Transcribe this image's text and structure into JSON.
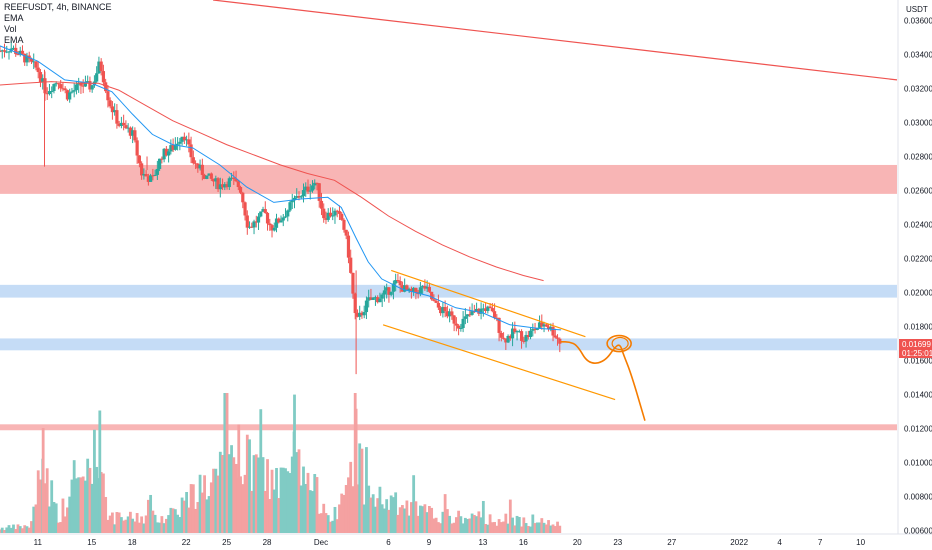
{
  "legend": {
    "symbol": "REEFUSDT, 4h, BINANCE",
    "ind1": "EMA",
    "ind2": "Vol",
    "ind3": "EMA"
  },
  "colors": {
    "up": "#26a69a",
    "down": "#ef5350",
    "ema_fast": "#2196f3",
    "ema_slow": "#ef5350",
    "channel": "#ff9800",
    "projection": "#f57c00",
    "red_zone": "#f7a8a8",
    "blue_zone": "#bbd6f5",
    "vol_up": "#80cbc4",
    "vol_down": "#f4a1a1"
  },
  "chart_data": {
    "type": "candlestick",
    "currency": "USDT",
    "y_ticks": [
      "0.03600",
      "0.03400",
      "0.03200",
      "0.03000",
      "0.02800",
      "0.02600",
      "0.02400",
      "0.02200",
      "0.02000",
      "0.01800",
      "0.01600",
      "0.01400",
      "0.01200",
      "0.01000",
      "0.00800",
      "0.00600"
    ],
    "y_tick_values": [
      0.036,
      0.034,
      0.032,
      0.03,
      0.028,
      0.026,
      0.024,
      0.022,
      0.02,
      0.018,
      0.016,
      0.014,
      0.012,
      0.01,
      0.008,
      0.006
    ],
    "ylim": [
      0.0058,
      0.0372
    ],
    "x_ticks": [
      "11",
      "15",
      "18",
      "22",
      "25",
      "28",
      "Dec",
      "6",
      "9",
      "13",
      "16",
      "20",
      "23",
      "27",
      "2022",
      "4",
      "7",
      "10"
    ],
    "x_tick_days": [
      11,
      15,
      18,
      22,
      25,
      28,
      32,
      37,
      40,
      44,
      47,
      51,
      54,
      58,
      63,
      66,
      69,
      72
    ],
    "xlim": [
      8.2,
      74.7
    ],
    "last_price": "0.01699",
    "countdown": "01:25:01",
    "last_value": 0.01699,
    "price_keys": [
      [
        8.2,
        0.0342
      ],
      [
        9.0,
        0.0344
      ],
      [
        10.0,
        0.0338
      ],
      [
        11.0,
        0.0331
      ],
      [
        11.6,
        0.0318
      ],
      [
        12.5,
        0.0325
      ],
      [
        13.2,
        0.0316
      ],
      [
        14.2,
        0.0322
      ],
      [
        15.0,
        0.0321
      ],
      [
        15.6,
        0.0335
      ],
      [
        16.3,
        0.0312
      ],
      [
        17.0,
        0.0299
      ],
      [
        18.0,
        0.0294
      ],
      [
        18.7,
        0.027
      ],
      [
        19.5,
        0.0266
      ],
      [
        20.2,
        0.0281
      ],
      [
        21.0,
        0.0285
      ],
      [
        21.8,
        0.0294
      ],
      [
        22.5,
        0.0277
      ],
      [
        23.5,
        0.0268
      ],
      [
        24.5,
        0.0263
      ],
      [
        25.3,
        0.0266
      ],
      [
        26.0,
        0.0262
      ],
      [
        26.6,
        0.0238
      ],
      [
        27.2,
        0.0242
      ],
      [
        27.8,
        0.0247
      ],
      [
        28.3,
        0.0238
      ],
      [
        29.2,
        0.0245
      ],
      [
        30.1,
        0.0255
      ],
      [
        31.0,
        0.0261
      ],
      [
        31.6,
        0.0265
      ],
      [
        32.2,
        0.0245
      ],
      [
        33.0,
        0.0247
      ],
      [
        33.6,
        0.0242
      ],
      [
        34.0,
        0.0225
      ],
      [
        34.6,
        0.0182
      ],
      [
        35.5,
        0.0195
      ],
      [
        36.6,
        0.0198
      ],
      [
        37.6,
        0.0206
      ],
      [
        38.6,
        0.0199
      ],
      [
        39.7,
        0.0203
      ],
      [
        40.5,
        0.0192
      ],
      [
        41.3,
        0.0188
      ],
      [
        42.2,
        0.0181
      ],
      [
        43.1,
        0.0187
      ],
      [
        44.2,
        0.0191
      ],
      [
        44.9,
        0.0186
      ],
      [
        45.5,
        0.0172
      ],
      [
        46.4,
        0.0177
      ],
      [
        47.1,
        0.0173
      ],
      [
        47.9,
        0.0179
      ],
      [
        48.6,
        0.0182
      ],
      [
        49.2,
        0.0177
      ],
      [
        49.8,
        0.017
      ]
    ],
    "volume_keys": [
      [
        8.2,
        4
      ],
      [
        10.5,
        6
      ],
      [
        11.4,
        60
      ],
      [
        12.5,
        14
      ],
      [
        15.6,
        70
      ],
      [
        16.3,
        12
      ],
      [
        20.5,
        14
      ],
      [
        25.9,
        62
      ],
      [
        29.3,
        40
      ],
      [
        30.0,
        58
      ],
      [
        33.2,
        10
      ],
      [
        34.6,
        71
      ],
      [
        35.5,
        32
      ],
      [
        38.0,
        22
      ],
      [
        41.0,
        14
      ],
      [
        44.5,
        12
      ],
      [
        47.8,
        10
      ],
      [
        49.8,
        6
      ]
    ],
    "ema_fast_keys": [
      [
        8.2,
        0.0345
      ],
      [
        11.0,
        0.0336
      ],
      [
        13.0,
        0.0325
      ],
      [
        15.0,
        0.0323
      ],
      [
        16.5,
        0.0318
      ],
      [
        18.0,
        0.0305
      ],
      [
        19.5,
        0.0293
      ],
      [
        21.0,
        0.0287
      ],
      [
        22.5,
        0.0285
      ],
      [
        24.5,
        0.0275
      ],
      [
        26.5,
        0.0262
      ],
      [
        28.5,
        0.0253
      ],
      [
        30.5,
        0.0255
      ],
      [
        32.5,
        0.0256
      ],
      [
        33.5,
        0.025
      ],
      [
        34.6,
        0.0232
      ],
      [
        35.5,
        0.0218
      ],
      [
        36.5,
        0.0208
      ],
      [
        38.0,
        0.0202
      ],
      [
        40.0,
        0.0198
      ],
      [
        42.0,
        0.0191
      ],
      [
        44.0,
        0.0188
      ],
      [
        46.0,
        0.0181
      ],
      [
        48.0,
        0.0179
      ],
      [
        49.8,
        0.0178
      ]
    ],
    "ema_slow_keys": [
      [
        8.2,
        0.0322
      ],
      [
        10.0,
        0.0323
      ],
      [
        12.0,
        0.0324
      ],
      [
        14.0,
        0.0323
      ],
      [
        15.5,
        0.0323
      ],
      [
        17.0,
        0.0319
      ],
      [
        19.0,
        0.031
      ],
      [
        21.0,
        0.0301
      ],
      [
        23.0,
        0.0294
      ],
      [
        25.0,
        0.0287
      ],
      [
        27.0,
        0.0281
      ],
      [
        29.0,
        0.0275
      ],
      [
        31.0,
        0.027
      ],
      [
        33.0,
        0.0266
      ],
      [
        35.0,
        0.0256
      ],
      [
        37.0,
        0.0245
      ],
      [
        39.0,
        0.0236
      ],
      [
        41.0,
        0.0228
      ],
      [
        43.0,
        0.0221
      ],
      [
        45.0,
        0.0215
      ],
      [
        47.0,
        0.021
      ],
      [
        48.5,
        0.0207
      ]
    ],
    "long_trendline": [
      [
        24.0,
        0.0372
      ],
      [
        74.7,
        0.0325
      ]
    ],
    "channel_upper": [
      [
        37.2,
        0.0213
      ],
      [
        51.6,
        0.0174
      ]
    ],
    "channel_lower": [
      [
        36.6,
        0.0181
      ],
      [
        53.8,
        0.0137
      ]
    ],
    "projection_path": [
      [
        49.8,
        0.0171
      ],
      [
        50.4,
        0.0171
      ],
      [
        51.0,
        0.0169
      ],
      [
        51.8,
        0.0158
      ],
      [
        53.0,
        0.0159
      ],
      [
        53.9,
        0.0169
      ],
      [
        54.2,
        0.0169
      ],
      [
        54.4,
        0.0164
      ],
      [
        55.0,
        0.0152
      ],
      [
        56.0,
        0.0125
      ]
    ],
    "projection_circle": [
      54.1,
      0.017
    ],
    "zones": [
      {
        "color": "red",
        "top": 0.0275,
        "bottom": 0.0258
      },
      {
        "color": "blue",
        "top": 0.02045,
        "bottom": 0.0197
      },
      {
        "color": "blue",
        "top": 0.0173,
        "bottom": 0.0166
      },
      {
        "color": "red",
        "top": 0.01225,
        "bottom": 0.0119
      }
    ]
  }
}
